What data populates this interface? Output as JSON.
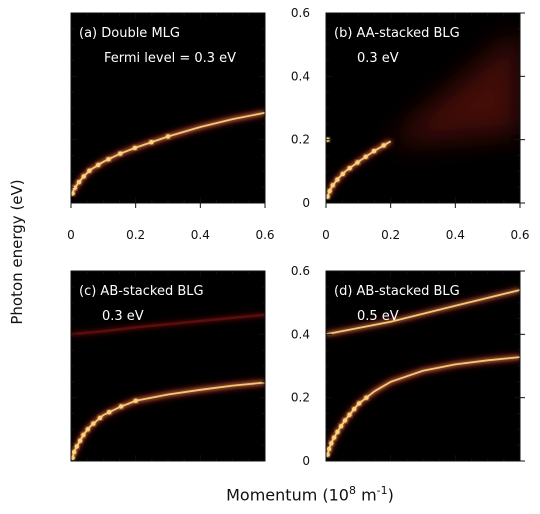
{
  "figure": {
    "ylabel": "Photon energy (eV)",
    "xlabel_prefix": "Momentum (10",
    "xlabel_exp1": "8",
    "xlabel_mid": " m",
    "xlabel_exp2": "-1",
    "xlabel_suffix": ")"
  },
  "colors": {
    "background": "#000000",
    "mode_core": "#ffd27a",
    "mode_glow": "#e0201a",
    "continuum": "#7a1410"
  },
  "chart_data": [
    {
      "type": "heatmap",
      "panel": "a",
      "title": "(a) Double MLG",
      "subtitle": "Fermi level = 0.3 eV",
      "xlim": [
        0,
        0.6
      ],
      "ylim": [
        0,
        0.6
      ],
      "xticks": [
        "0",
        "0.2",
        "0.4",
        "0.6"
      ],
      "yticks": [],
      "bands": [
        {
          "points": [
            [
              0.005,
              0.03
            ],
            [
              0.01,
              0.045
            ],
            [
              0.02,
              0.06
            ],
            [
              0.04,
              0.085
            ],
            [
              0.06,
              0.105
            ],
            [
              0.1,
              0.13
            ],
            [
              0.15,
              0.155
            ],
            [
              0.2,
              0.175
            ],
            [
              0.3,
              0.21
            ],
            [
              0.4,
              0.24
            ],
            [
              0.5,
              0.265
            ],
            [
              0.6,
              0.285
            ]
          ],
          "intensity": 1.0
        }
      ],
      "continuum": null
    },
    {
      "type": "heatmap",
      "panel": "b",
      "title": "(b) AA-stacked BLG",
      "subtitle": "0.3 eV",
      "xlim": [
        0,
        0.6
      ],
      "ylim": [
        0,
        0.6
      ],
      "xticks": [
        "0",
        "0.2",
        "0.4",
        "0.6"
      ],
      "yticks": [
        "0",
        "0.2",
        "0.4",
        "0.6"
      ],
      "bands": [
        {
          "points": [
            [
              0.005,
              0.02
            ],
            [
              0.01,
              0.035
            ],
            [
              0.02,
              0.055
            ],
            [
              0.04,
              0.08
            ],
            [
              0.06,
              0.1
            ],
            [
              0.1,
              0.13
            ],
            [
              0.15,
              0.165
            ],
            [
              0.2,
              0.195
            ]
          ],
          "intensity": 1.0
        }
      ],
      "continuum": {
        "from_x": 0.2,
        "spread": true
      }
    },
    {
      "type": "heatmap",
      "panel": "c",
      "title": "(c) AB-stacked BLG",
      "subtitle": "0.3 eV",
      "xlim": [
        0,
        0.6
      ],
      "ylim": [
        0,
        0.6
      ],
      "xticks": [],
      "yticks": [],
      "bands": [
        {
          "points": [
            [
              0.005,
              0.01
            ],
            [
              0.01,
              0.03
            ],
            [
              0.02,
              0.05
            ],
            [
              0.04,
              0.085
            ],
            [
              0.06,
              0.11
            ],
            [
              0.1,
              0.145
            ],
            [
              0.15,
              0.17
            ],
            [
              0.2,
              0.19
            ],
            [
              0.3,
              0.21
            ],
            [
              0.4,
              0.225
            ],
            [
              0.5,
              0.238
            ],
            [
              0.6,
              0.248
            ]
          ],
          "intensity": 1.0
        },
        {
          "points": [
            [
              0.0,
              0.4
            ],
            [
              0.1,
              0.41
            ],
            [
              0.2,
              0.422
            ],
            [
              0.3,
              0.432
            ],
            [
              0.4,
              0.442
            ],
            [
              0.5,
              0.452
            ],
            [
              0.6,
              0.462
            ]
          ],
          "intensity": 0.25
        }
      ],
      "continuum": null
    },
    {
      "type": "heatmap",
      "panel": "d",
      "title": "(d) AB-stacked BLG",
      "subtitle": "0.5 eV",
      "xlim": [
        0,
        0.6
      ],
      "ylim": [
        0,
        0.6
      ],
      "xticks": [],
      "yticks": [
        "0",
        "0.2",
        "0.4",
        "0.6"
      ],
      "bands": [
        {
          "points": [
            [
              0.005,
              0.02
            ],
            [
              0.01,
              0.04
            ],
            [
              0.02,
              0.065
            ],
            [
              0.04,
              0.1
            ],
            [
              0.06,
              0.13
            ],
            [
              0.1,
              0.18
            ],
            [
              0.15,
              0.22
            ],
            [
              0.2,
              0.25
            ],
            [
              0.3,
              0.285
            ],
            [
              0.4,
              0.305
            ],
            [
              0.5,
              0.318
            ],
            [
              0.6,
              0.328
            ]
          ],
          "intensity": 1.0
        },
        {
          "points": [
            [
              0.0,
              0.4
            ],
            [
              0.1,
              0.42
            ],
            [
              0.2,
              0.44
            ],
            [
              0.3,
              0.465
            ],
            [
              0.4,
              0.49
            ],
            [
              0.5,
              0.515
            ],
            [
              0.6,
              0.54
            ]
          ],
          "intensity": 0.8
        }
      ],
      "continuum": null
    }
  ]
}
